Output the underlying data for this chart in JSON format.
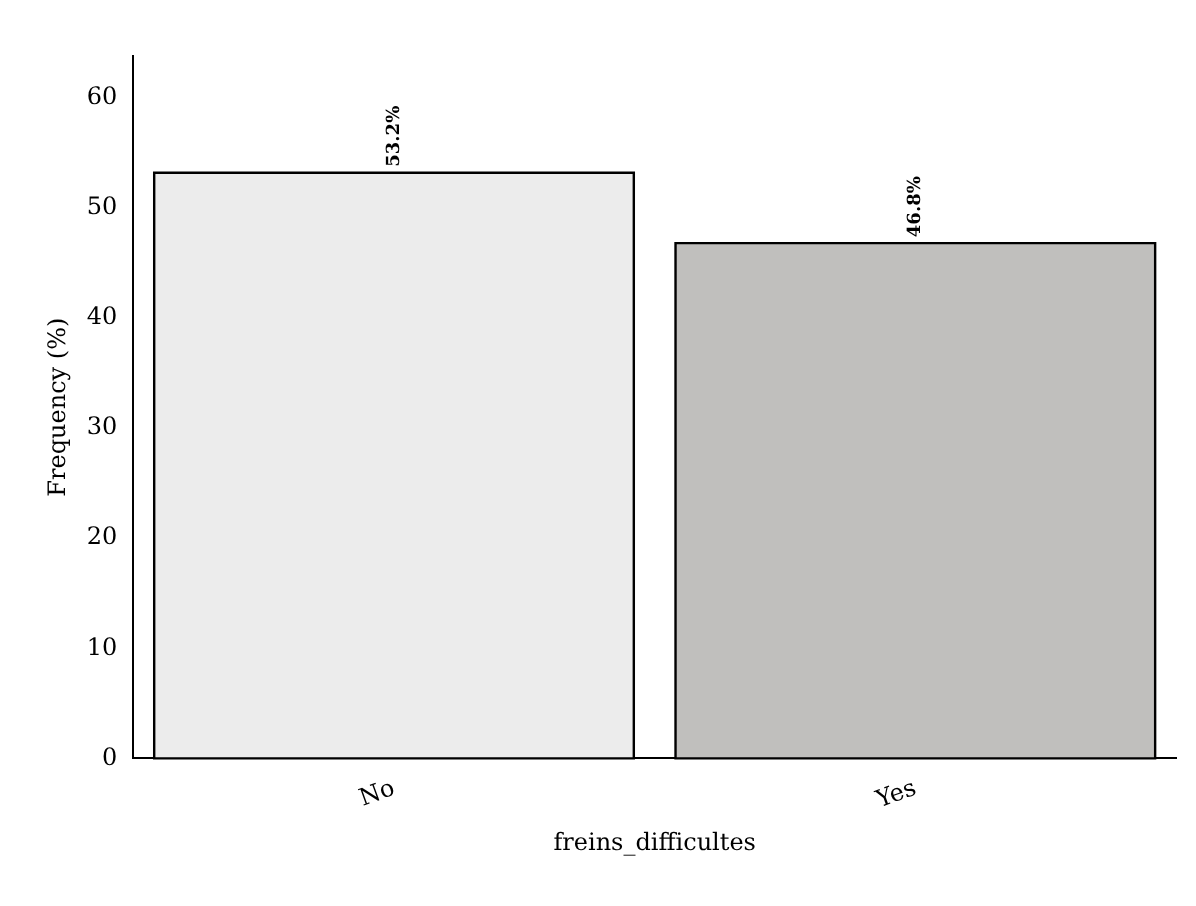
{
  "chart_data": {
    "type": "bar",
    "xlabel": "freins_difficultes",
    "ylabel": "Frequency (%)",
    "categories": [
      "No",
      "Yes"
    ],
    "values": [
      53.2,
      46.8
    ],
    "colors": [
      "#ececec",
      "#c0bfbd"
    ],
    "value_labels": [
      "53.2%",
      "46.8%"
    ],
    "ylim": [
      0,
      63.8
    ],
    "yticks": [
      0,
      10,
      20,
      30,
      40,
      50,
      60
    ],
    "grid": false,
    "legend": false
  }
}
